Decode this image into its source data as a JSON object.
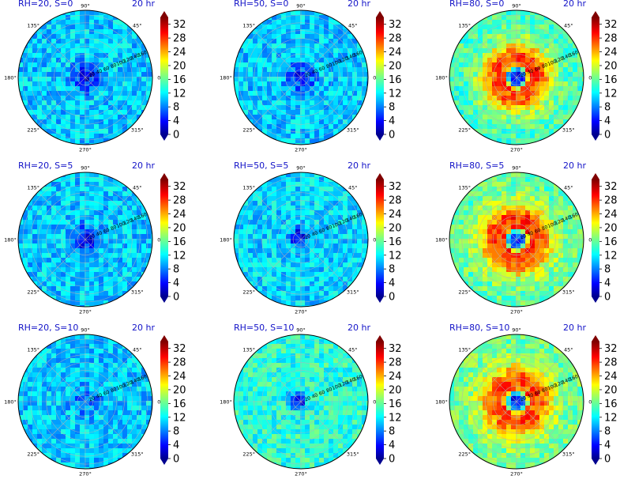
{
  "chart_data": {
    "type": "heatmap",
    "layout": "3x3 grid of polar plots, each with its own colorbar",
    "angular_ticks": [
      "0°",
      "45°",
      "90°",
      "135°",
      "180°",
      "225°",
      "270°",
      "315°"
    ],
    "radial_ticks": [
      "20",
      "40",
      "60",
      "80",
      "100",
      "120",
      "140",
      "160"
    ],
    "colorbar": {
      "ticks": [
        "0",
        "4",
        "8",
        "12",
        "16",
        "20",
        "24",
        "28",
        "32"
      ],
      "range": [
        0,
        34
      ],
      "colormap": "jet",
      "extend": "both"
    },
    "colors": {
      "title": "#1414c8",
      "grid": "#b4b4b4"
    },
    "panels": [
      {
        "title": "RH=20, S=0",
        "time": "20 hr",
        "pattern": "low_center",
        "bg": 11,
        "center": 3,
        "ring": 0
      },
      {
        "title": "RH=50, S=0",
        "time": "20 hr",
        "pattern": "low_center",
        "bg": 11,
        "center": 4,
        "ring": 0
      },
      {
        "title": "RH=80, S=0",
        "time": "20 hr",
        "pattern": "ring",
        "bg": 15,
        "center": 4,
        "ring": 27
      },
      {
        "title": "RH=20, S=5",
        "time": "20 hr",
        "pattern": "low_center",
        "bg": 11,
        "center": 3,
        "ring": 0
      },
      {
        "title": "RH=50, S=5",
        "time": "20 hr",
        "pattern": "offset_low",
        "bg": 11.5,
        "center": 5,
        "ring": 0
      },
      {
        "title": "RH=80, S=5",
        "time": "20 hr",
        "pattern": "ring",
        "bg": 16,
        "center": 6,
        "ring": 28
      },
      {
        "title": "RH=20, S=10",
        "time": "20 hr",
        "pattern": "low_center",
        "bg": 11,
        "center": 7,
        "ring": 0
      },
      {
        "title": "RH=50, S=10",
        "time": "20 hr",
        "pattern": "offset_low",
        "bg": 14,
        "center": 5,
        "ring": 0
      },
      {
        "title": "RH=80, S=10",
        "time": "20 hr",
        "pattern": "ring",
        "bg": 16.5,
        "center": 5,
        "ring": 27
      }
    ]
  }
}
